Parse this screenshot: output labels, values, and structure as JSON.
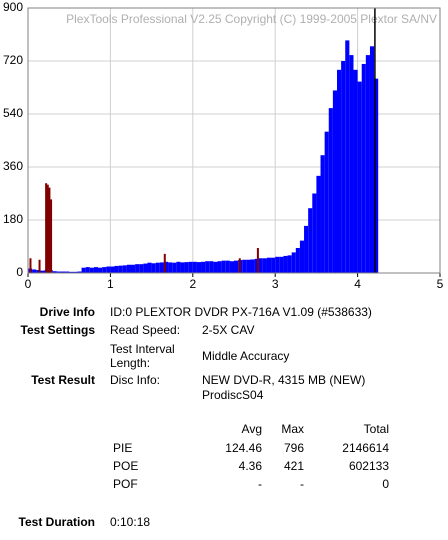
{
  "chart_data": {
    "type": "bar",
    "title": "PlexTools Professional V2.25 Copyright (C) 1999-2005 Plextor SA/NV",
    "xlim": [
      0,
      5
    ],
    "xticks": [
      0,
      1,
      2,
      3,
      4,
      5
    ],
    "ylim": [
      0,
      900
    ],
    "yticks": [
      0,
      180,
      360,
      540,
      720,
      900
    ],
    "grid": true,
    "marker_x": 4.21,
    "series": [
      {
        "color": "#0000ff",
        "x": [
          0,
          0.05,
          0.1,
          0.15,
          0.2,
          0.25,
          0.3,
          0.35,
          0.4,
          0.45,
          0.5,
          0.55,
          0.6,
          0.65,
          0.7,
          0.75,
          0.8,
          0.85,
          0.9,
          0.95,
          1,
          1.05,
          1.1,
          1.15,
          1.2,
          1.25,
          1.3,
          1.35,
          1.4,
          1.45,
          1.5,
          1.55,
          1.6,
          1.65,
          1.7,
          1.75,
          1.8,
          1.85,
          1.9,
          1.95,
          2,
          2.05,
          2.1,
          2.15,
          2.2,
          2.25,
          2.3,
          2.35,
          2.4,
          2.45,
          2.5,
          2.55,
          2.6,
          2.65,
          2.7,
          2.75,
          2.8,
          2.85,
          2.9,
          2.95,
          3,
          3.05,
          3.1,
          3.15,
          3.2,
          3.25,
          3.3,
          3.35,
          3.4,
          3.45,
          3.5,
          3.55,
          3.6,
          3.65,
          3.7,
          3.75,
          3.8,
          3.85,
          3.9,
          3.95,
          4,
          4.05,
          4.1,
          4.15,
          4.2
        ],
        "values": [
          15,
          12,
          10,
          8,
          10,
          10,
          6,
          5,
          5,
          5,
          4,
          4,
          5,
          18,
          20,
          18,
          20,
          18,
          20,
          22,
          22,
          24,
          25,
          26,
          28,
          28,
          30,
          30,
          32,
          35,
          33,
          35,
          36,
          38,
          36,
          35,
          38,
          36,
          37,
          38,
          38,
          37,
          38,
          40,
          40,
          38,
          40,
          42,
          42,
          40,
          42,
          44,
          45,
          45,
          46,
          48,
          50,
          50,
          52,
          52,
          55,
          55,
          58,
          60,
          70,
          85,
          110,
          160,
          220,
          270,
          330,
          400,
          480,
          560,
          620,
          690,
          720,
          790,
          740,
          690,
          650,
          710,
          740,
          770,
          660
        ]
      },
      {
        "color": "#800000",
        "x": [
          0.03,
          0.14,
          0.22,
          0.24,
          0.26,
          0.28,
          1.66,
          2.57,
          2.79
        ],
        "values": [
          50,
          45,
          305,
          300,
          290,
          250,
          65,
          50,
          85
        ]
      }
    ]
  },
  "info": {
    "drive_label": "Drive Info",
    "drive_value": "ID:0 PLEXTOR DVDR PX-716A V1.09 (#538633)",
    "settings_label": "Test Settings",
    "speed_label": "Read Speed:",
    "speed_value": "2-5X CAV",
    "interval_label_1": "Test Interval",
    "interval_label_2": "Length:",
    "interval_value": "Middle Accuracy",
    "result_label": "Test Result",
    "disc_label": "Disc Info:",
    "disc_value_1": "NEW DVD-R, 4315 MB (NEW)",
    "disc_value_2": "ProdiscS04",
    "stats": {
      "header": [
        "Avg",
        "Max",
        "Total"
      ],
      "rows": [
        [
          "PIE",
          "124.46",
          "796",
          "2146614"
        ],
        [
          "POE",
          "4.36",
          "421",
          "602133"
        ],
        [
          "POF",
          "-",
          "-",
          "0"
        ]
      ]
    },
    "duration_label": "Test Duration",
    "duration_value": "0:10:18"
  }
}
